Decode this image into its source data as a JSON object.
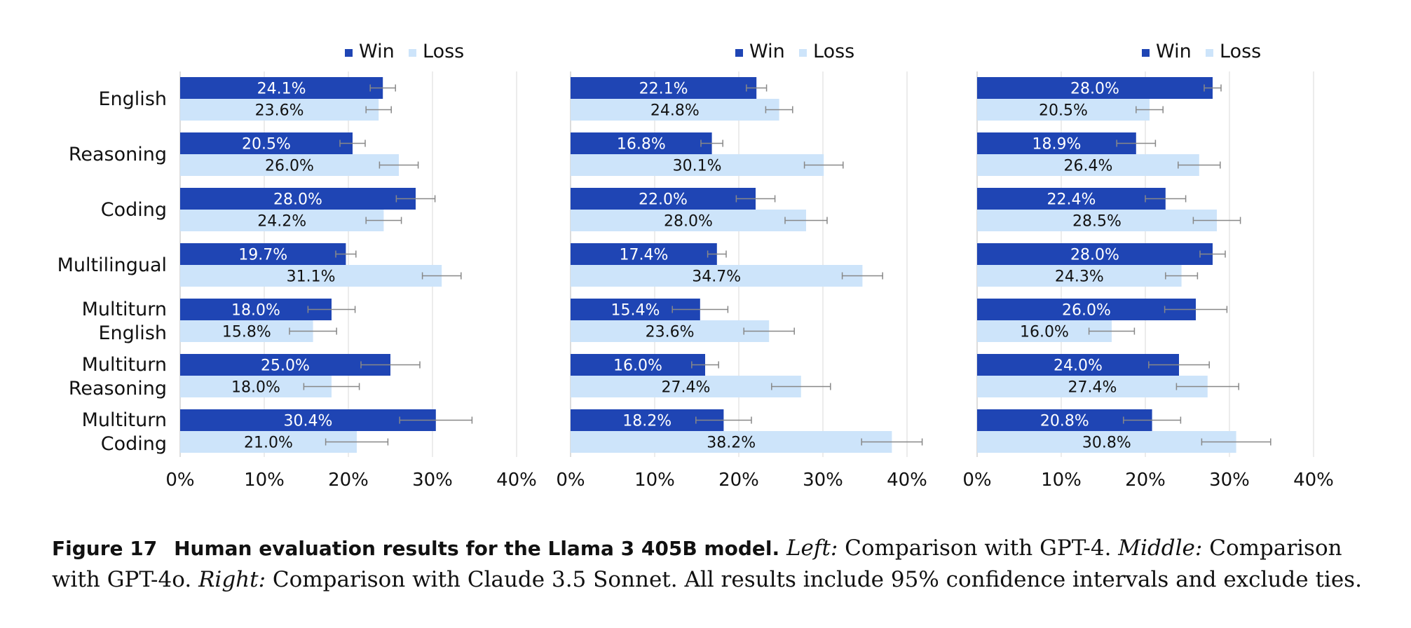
{
  "colors": {
    "win": "#1f45b4",
    "loss": "#cde4fa",
    "error": "#888888",
    "grid": "#e6e6e6"
  },
  "chart_data": [
    {
      "type": "bar",
      "orientation": "horizontal",
      "categories": [
        "English",
        "Reasoning",
        "Coding",
        "Multilingual",
        "Multiturn English",
        "Multiturn Reasoning",
        "Multiturn Coding"
      ],
      "series": [
        {
          "name": "Win",
          "values": [
            24.1,
            20.5,
            28.0,
            19.7,
            18.0,
            25.0,
            30.4
          ]
        },
        {
          "name": "Loss",
          "values": [
            23.6,
            26.0,
            24.2,
            31.1,
            15.8,
            18.0,
            21.0
          ]
        }
      ],
      "error_bars": "95% confidence intervals",
      "xlim": [
        0,
        40
      ],
      "xticks": [
        "0%",
        "10%",
        "20%",
        "30%",
        "40%"
      ],
      "legend": "top-center",
      "grid": "vertical"
    },
    {
      "type": "bar",
      "orientation": "horizontal",
      "categories": [
        "English",
        "Reasoning",
        "Coding",
        "Multilingual",
        "Multiturn English",
        "Multiturn Reasoning",
        "Multiturn Coding"
      ],
      "series": [
        {
          "name": "Win",
          "values": [
            22.1,
            16.8,
            22.0,
            17.4,
            15.4,
            16.0,
            18.2
          ]
        },
        {
          "name": "Loss",
          "values": [
            24.8,
            30.1,
            28.0,
            34.7,
            23.6,
            27.4,
            38.2
          ]
        }
      ],
      "error_bars": "95% confidence intervals",
      "xlim": [
        0,
        40
      ],
      "xticks": [
        "0%",
        "10%",
        "20%",
        "30%",
        "40%"
      ],
      "legend": "top-center",
      "grid": "vertical"
    },
    {
      "type": "bar",
      "orientation": "horizontal",
      "categories": [
        "English",
        "Reasoning",
        "Coding",
        "Multilingual",
        "Multiturn English",
        "Multiturn Reasoning",
        "Multiturn Coding"
      ],
      "series": [
        {
          "name": "Win",
          "values": [
            28.0,
            18.9,
            22.4,
            28.0,
            26.0,
            24.0,
            20.8
          ]
        },
        {
          "name": "Loss",
          "values": [
            20.5,
            26.4,
            28.5,
            24.3,
            16.0,
            27.4,
            30.8
          ]
        }
      ],
      "error_bars": "95% confidence intervals",
      "xlim": [
        0,
        40
      ],
      "xticks": [
        "0%",
        "10%",
        "20%",
        "30%",
        "40%"
      ],
      "legend": "top-center",
      "grid": "vertical"
    }
  ],
  "caption": {
    "figure_number": "Figure 17",
    "title": "Human evaluation results for the Llama 3 405B model.",
    "left_label": "Left:",
    "left_text": "Comparison with GPT-4.",
    "middle_label": "Middle:",
    "middle_text": "Comparison with GPT-4o.",
    "right_label": "Right:",
    "right_text": "Comparison with Claude 3.5 Sonnet. All results include 95% confidence intervals and exclude ties."
  }
}
